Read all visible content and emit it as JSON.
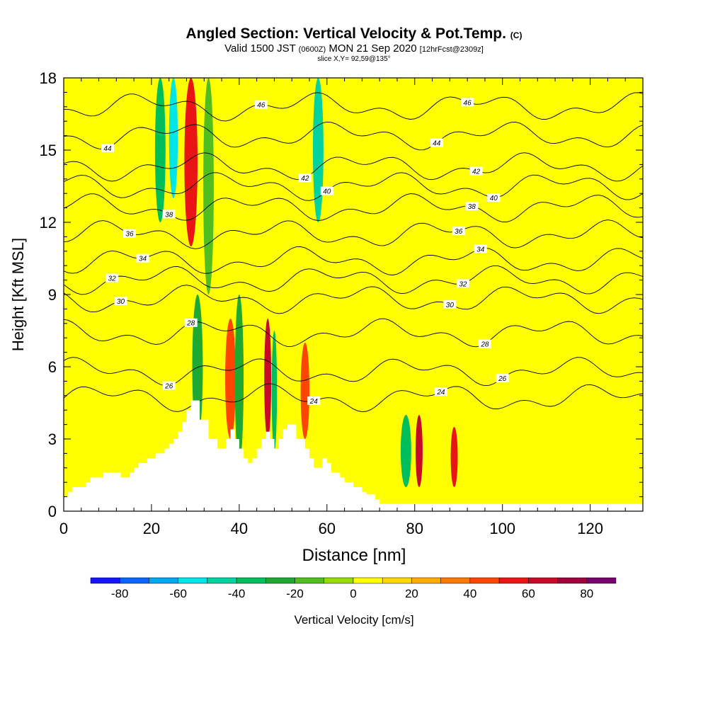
{
  "header": {
    "title_main": "Angled Section: Vertical Velocity & Pot.Temp.",
    "title_suffix": "(C)",
    "valid_a": "Valid 1500 JST",
    "valid_b": "(0600Z)",
    "valid_c": "MON 21 Sep 2020",
    "valid_d": "[12hrFcst@2309z]",
    "slice": "slice X,Y= 92,59@135°"
  },
  "chart_data": {
    "type": "heatmap",
    "title": "Angled Section: Vertical Velocity & Pot.Temp.",
    "xlabel": "Distance [nm]",
    "ylabel": "Height [Kft MSL]",
    "xlim": [
      0,
      132
    ],
    "ylim": [
      0,
      18
    ],
    "x_ticks": [
      0,
      20,
      40,
      60,
      80,
      100,
      120
    ],
    "y_ticks": [
      0,
      3,
      6,
      9,
      12,
      15,
      18
    ],
    "colorbar": {
      "label": "Vertical Velocity [cm/s]",
      "tick_values": [
        -80,
        -60,
        -40,
        -20,
        0,
        20,
        40,
        60,
        80
      ],
      "bins": [
        -90,
        -80,
        -70,
        -60,
        -50,
        -40,
        -30,
        -20,
        -10,
        0,
        10,
        20,
        30,
        40,
        50,
        60,
        70,
        80,
        90
      ],
      "colors": [
        "#1414ff",
        "#0a64ff",
        "#00a8f0",
        "#00e6e6",
        "#00d2a0",
        "#00be5a",
        "#1eaa32",
        "#50be1e",
        "#96dc0a",
        "#ffff00",
        "#ffd700",
        "#ffaa00",
        "#ff7800",
        "#ff4600",
        "#eb1414",
        "#c80a28",
        "#a0003c",
        "#78006e"
      ]
    },
    "background_value_cm_s": 0,
    "features": [
      {
        "x": 22,
        "width": 1.2,
        "zmin": 12,
        "zmax": 18,
        "w": -40
      },
      {
        "x": 25,
        "width": 1.0,
        "zmin": 13,
        "zmax": 18,
        "w": -60
      },
      {
        "x": 29,
        "width": 1.5,
        "zmin": 11,
        "zmax": 18,
        "w": 50
      },
      {
        "x": 30.5,
        "width": 1.2,
        "zmin": 3,
        "zmax": 9,
        "w": -30
      },
      {
        "x": 33,
        "width": 1.2,
        "zmin": 9,
        "zmax": 18,
        "w": -20
      },
      {
        "x": 38,
        "width": 1.2,
        "zmin": 3,
        "zmax": 8,
        "w": 40
      },
      {
        "x": 40,
        "width": 1.0,
        "zmin": 2,
        "zmax": 9,
        "w": -30
      },
      {
        "x": 46.5,
        "width": 0.8,
        "zmin": 3,
        "zmax": 8,
        "w": 60
      },
      {
        "x": 48,
        "width": 0.6,
        "zmin": 2.5,
        "zmax": 7.5,
        "w": -40
      },
      {
        "x": 55,
        "width": 1.0,
        "zmin": 3,
        "zmax": 7,
        "w": 40
      },
      {
        "x": 58,
        "width": 1.2,
        "zmin": 12,
        "zmax": 18,
        "w": -50
      },
      {
        "x": 78,
        "width": 1.2,
        "zmin": 1,
        "zmax": 4,
        "w": -40
      },
      {
        "x": 81,
        "width": 0.8,
        "zmin": 1,
        "zmax": 4,
        "w": 60
      },
      {
        "x": 89,
        "width": 0.8,
        "zmin": 1,
        "zmax": 3.5,
        "w": 50
      }
    ],
    "terrain": {
      "x": [
        0,
        1,
        2,
        5,
        6,
        9,
        13,
        15,
        16,
        17,
        19,
        21,
        23,
        24,
        25,
        26,
        27,
        28,
        29,
        31,
        33,
        35,
        37,
        38,
        39,
        40,
        41,
        42,
        43,
        44,
        45,
        46,
        47,
        48,
        49,
        50,
        51,
        53,
        55,
        56,
        57,
        59,
        60,
        61,
        63,
        64,
        66,
        68,
        69,
        71,
        72,
        132
      ],
      "height_kft": [
        0.6,
        0.8,
        1.0,
        1.2,
        1.4,
        1.6,
        1.4,
        1.6,
        1.8,
        2.0,
        2.2,
        2.4,
        2.6,
        2.8,
        3.0,
        3.3,
        3.7,
        4.2,
        4.6,
        3.8,
        3.0,
        2.6,
        3.0,
        3.4,
        3.0,
        2.6,
        2.2,
        2.0,
        2.2,
        2.6,
        3.0,
        3.3,
        3.0,
        2.6,
        3.0,
        3.4,
        3.6,
        3.0,
        2.6,
        2.2,
        1.8,
        2.2,
        2.0,
        1.6,
        1.4,
        1.2,
        1.0,
        0.8,
        0.7,
        0.5,
        0.3,
        0.3
      ]
    },
    "theta_contours_c": [
      {
        "label": "24",
        "z": 4.7,
        "label_x": 86,
        "label2_x": 57
      },
      {
        "label": "26",
        "z": 5.8,
        "label_x": 100,
        "label2_x": 24
      },
      {
        "label": "28",
        "z": 7.4,
        "label_x": 96,
        "label2_x": 29
      },
      {
        "label": "30",
        "z": 8.8,
        "label_x": 88,
        "label2_x": 13
      },
      {
        "label": "32",
        "z": 9.6,
        "label_x": 91,
        "label2_x": 11
      },
      {
        "label": "34",
        "z": 10.4,
        "label_x": 95,
        "label2_x": 18
      },
      {
        "label": "36",
        "z": 11.5,
        "label_x": 90,
        "label2_x": 15
      },
      {
        "label": "38",
        "z": 12.6,
        "label_x": 93,
        "label2_x": 24
      },
      {
        "label": "40",
        "z": 13.5,
        "label_x": 98,
        "label2_x": 60
      },
      {
        "label": "42",
        "z": 14.3,
        "label_x": 94,
        "label2_x": 55
      },
      {
        "label": "44",
        "z": 15.6,
        "label_x": 85,
        "label2_x": 10
      },
      {
        "label": "46",
        "z": 16.8,
        "label_x": 92,
        "label2_x": 45
      }
    ]
  }
}
